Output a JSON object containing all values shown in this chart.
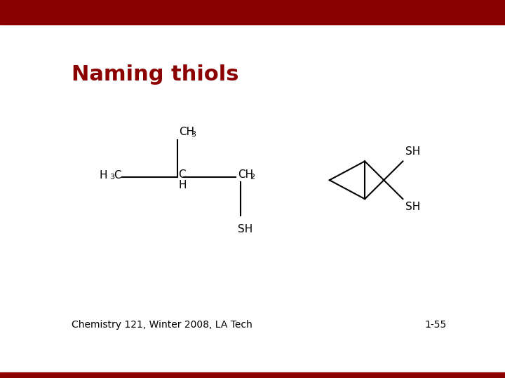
{
  "title": "Naming thiols",
  "title_color": "#8B0000",
  "title_fontsize": 22,
  "background_color": "#FFFFFF",
  "top_bar_color": "#8B0000",
  "bottom_bar_color": "#8B0000",
  "footer_text": "Chemistry 121, Winter 2008, LA Tech",
  "footer_page": "1-55",
  "footer_fontsize": 10,
  "line_color": "#000000",
  "text_color": "#000000"
}
